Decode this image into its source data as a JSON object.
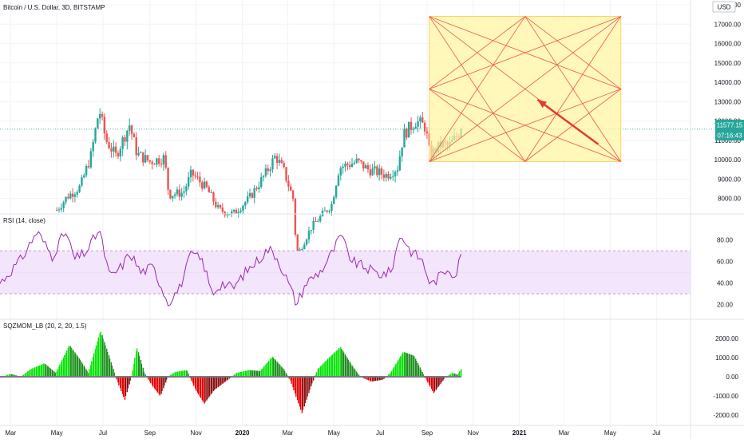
{
  "header": {
    "title": "Bitcoin / U.S. Dollar, 3D, BITSTAMP",
    "currency": "USD"
  },
  "price_panel": {
    "last_price_label": "11577.15",
    "countdown_label": "07:16:43",
    "y_ticks": [
      "18000.00",
      "17000.00",
      "16000.00",
      "15000.00",
      "14000.00",
      "13000.00",
      "12000.00",
      "11000.00",
      "10000.00",
      "9000.00",
      "8000.00"
    ]
  },
  "rsi_panel": {
    "label": "RSI (14, close)",
    "y_ticks": [
      "80.00",
      "60.00",
      "40.00",
      "20.00"
    ]
  },
  "squeeze_panel": {
    "label": "SQZMOM_LB (20, 2, 20, 1.5)",
    "y_ticks": [
      "2000.00",
      "1000.00",
      "0.00",
      "-1000.00",
      "-2000.00"
    ]
  },
  "x_axis": {
    "ticks": [
      "Mar",
      "May",
      "Jul",
      "Sep",
      "Nov",
      "2020",
      "Mar",
      "May",
      "Jul",
      "Sep",
      "Nov",
      "2021",
      "Mar",
      "May",
      "Jul"
    ]
  },
  "colors": {
    "up": "#26a69a",
    "down": "#ef5350",
    "rsi_line": "#9c27b0",
    "rsi_band": "#f3e5fc",
    "hist_green": "#00e600",
    "hist_red": "#e60000",
    "gann_fill": "#fff59d",
    "gann_line": "#ef5350",
    "arrow": "#e53935",
    "label_bg": "#26a69a"
  },
  "chart_data": [
    {
      "type": "candlestick",
      "title": "Bitcoin / U.S. Dollar, 3D, BITSTAMP",
      "ylim": [
        7200,
        18000
      ],
      "x_range": [
        "2019-02-15",
        "2021-08-15"
      ],
      "anchors": [
        [
          "2019-05-01",
          7400
        ],
        [
          "2019-05-15",
          8100
        ],
        [
          "2019-06-01",
          8600
        ],
        [
          "2019-06-15",
          10200
        ],
        [
          "2019-06-26",
          12600
        ],
        [
          "2019-07-05",
          11000
        ],
        [
          "2019-07-18",
          10200
        ],
        [
          "2019-08-05",
          11800
        ],
        [
          "2019-08-15",
          10300
        ],
        [
          "2019-09-01",
          9900
        ],
        [
          "2019-09-20",
          10100
        ],
        [
          "2019-09-26",
          8200
        ],
        [
          "2019-10-15",
          8300
        ],
        [
          "2019-10-26",
          9300
        ],
        [
          "2019-11-15",
          8500
        ],
        [
          "2019-12-01",
          7400
        ],
        [
          "2019-12-20",
          7200
        ],
        [
          "2020-01-10",
          8000
        ],
        [
          "2020-02-01",
          9300
        ],
        [
          "2020-02-14",
          10200
        ],
        [
          "2020-02-25",
          9400
        ],
        [
          "2020-03-08",
          8000
        ],
        [
          "2020-03-13",
          5000
        ],
        [
          "2020-04-01",
          6500
        ],
        [
          "2020-04-28",
          7700
        ],
        [
          "2020-05-08",
          9600
        ],
        [
          "2020-06-01",
          9900
        ],
        [
          "2020-06-15",
          9500
        ],
        [
          "2020-07-10",
          9200
        ],
        [
          "2020-07-24",
          9600
        ],
        [
          "2020-08-01",
          11300
        ],
        [
          "2020-08-17",
          12000
        ],
        [
          "2020-08-30",
          11700
        ],
        [
          "2020-09-05",
          10200
        ],
        [
          "2020-09-20",
          10800
        ],
        [
          "2020-09-30",
          10700
        ],
        [
          "2020-10-09",
          11150
        ],
        [
          "2020-10-16",
          11577
        ]
      ],
      "last_price": 11577.15
    },
    {
      "type": "line",
      "title": "RSI (14, close)",
      "ylim": [
        15,
        90
      ],
      "band": [
        30,
        70
      ],
      "anchors": [
        [
          "2019-02-15",
          40
        ],
        [
          "2019-03-15",
          62
        ],
        [
          "2019-04-05",
          88
        ],
        [
          "2019-04-25",
          65
        ],
        [
          "2019-05-12",
          88
        ],
        [
          "2019-05-25",
          62
        ],
        [
          "2019-06-10",
          70
        ],
        [
          "2019-06-26",
          90
        ],
        [
          "2019-07-10",
          45
        ],
        [
          "2019-07-25",
          55
        ],
        [
          "2019-08-06",
          68
        ],
        [
          "2019-08-20",
          50
        ],
        [
          "2019-09-05",
          55
        ],
        [
          "2019-09-25",
          22
        ],
        [
          "2019-10-10",
          35
        ],
        [
          "2019-10-26",
          68
        ],
        [
          "2019-11-10",
          60
        ],
        [
          "2019-11-22",
          30
        ],
        [
          "2019-12-05",
          40
        ],
        [
          "2019-12-20",
          35
        ],
        [
          "2020-01-05",
          50
        ],
        [
          "2020-01-20",
          60
        ],
        [
          "2020-02-05",
          72
        ],
        [
          "2020-02-15",
          65
        ],
        [
          "2020-02-28",
          45
        ],
        [
          "2020-03-13",
          20
        ],
        [
          "2020-03-25",
          40
        ],
        [
          "2020-04-15",
          52
        ],
        [
          "2020-04-30",
          70
        ],
        [
          "2020-05-10",
          84
        ],
        [
          "2020-05-25",
          60
        ],
        [
          "2020-06-10",
          55
        ],
        [
          "2020-06-30",
          48
        ],
        [
          "2020-07-15",
          50
        ],
        [
          "2020-07-28",
          86
        ],
        [
          "2020-08-10",
          70
        ],
        [
          "2020-08-25",
          62
        ],
        [
          "2020-09-06",
          38
        ],
        [
          "2020-09-20",
          48
        ],
        [
          "2020-09-30",
          55
        ],
        [
          "2020-10-08",
          45
        ],
        [
          "2020-10-16",
          67
        ]
      ]
    },
    {
      "type": "bar",
      "title": "SQZMOM_LB (20, 2, 20, 1.5)",
      "ylim": [
        -2300,
        2500
      ],
      "anchors": [
        [
          "2019-02-15",
          -50
        ],
        [
          "2019-03-01",
          150
        ],
        [
          "2019-03-15",
          0
        ],
        [
          "2019-03-28",
          400
        ],
        [
          "2019-04-15",
          700
        ],
        [
          "2019-04-30",
          200
        ],
        [
          "2019-05-18",
          1650
        ],
        [
          "2019-06-01",
          900
        ],
        [
          "2019-06-12",
          200
        ],
        [
          "2019-06-28",
          2400
        ],
        [
          "2019-07-10",
          1000
        ],
        [
          "2019-07-20",
          -200
        ],
        [
          "2019-07-30",
          -1200
        ],
        [
          "2019-08-08",
          0
        ],
        [
          "2019-08-15",
          1550
        ],
        [
          "2019-08-25",
          200
        ],
        [
          "2019-09-05",
          -500
        ],
        [
          "2019-09-15",
          -1000
        ],
        [
          "2019-09-25",
          0
        ],
        [
          "2019-10-05",
          250
        ],
        [
          "2019-10-20",
          350
        ],
        [
          "2019-11-01",
          -700
        ],
        [
          "2019-11-12",
          -1400
        ],
        [
          "2019-11-25",
          -700
        ],
        [
          "2019-12-10",
          -250
        ],
        [
          "2019-12-25",
          200
        ],
        [
          "2020-01-10",
          350
        ],
        [
          "2020-01-25",
          300
        ],
        [
          "2020-02-10",
          1050
        ],
        [
          "2020-02-25",
          400
        ],
        [
          "2020-03-05",
          -200
        ],
        [
          "2020-03-20",
          -1900
        ],
        [
          "2020-04-01",
          -500
        ],
        [
          "2020-04-10",
          400
        ],
        [
          "2020-04-25",
          1000
        ],
        [
          "2020-05-10",
          1550
        ],
        [
          "2020-05-25",
          600
        ],
        [
          "2020-06-05",
          0
        ],
        [
          "2020-06-20",
          -250
        ],
        [
          "2020-07-05",
          -150
        ],
        [
          "2020-07-15",
          200
        ],
        [
          "2020-08-01",
          1300
        ],
        [
          "2020-08-15",
          1100
        ],
        [
          "2020-08-28",
          100
        ],
        [
          "2020-09-10",
          -850
        ],
        [
          "2020-09-25",
          -50
        ],
        [
          "2020-10-05",
          200
        ],
        [
          "2020-10-12",
          100
        ],
        [
          "2020-10-16",
          400
        ]
      ]
    }
  ],
  "drawings": {
    "gann_box": {
      "start": "2020-09-04",
      "end": "2021-05-15",
      "low": 9900,
      "high": 17400
    },
    "arrow": {
      "from": [
        "2021-04-15",
        10800
      ],
      "to": [
        "2021-01-25",
        13100
      ]
    }
  }
}
